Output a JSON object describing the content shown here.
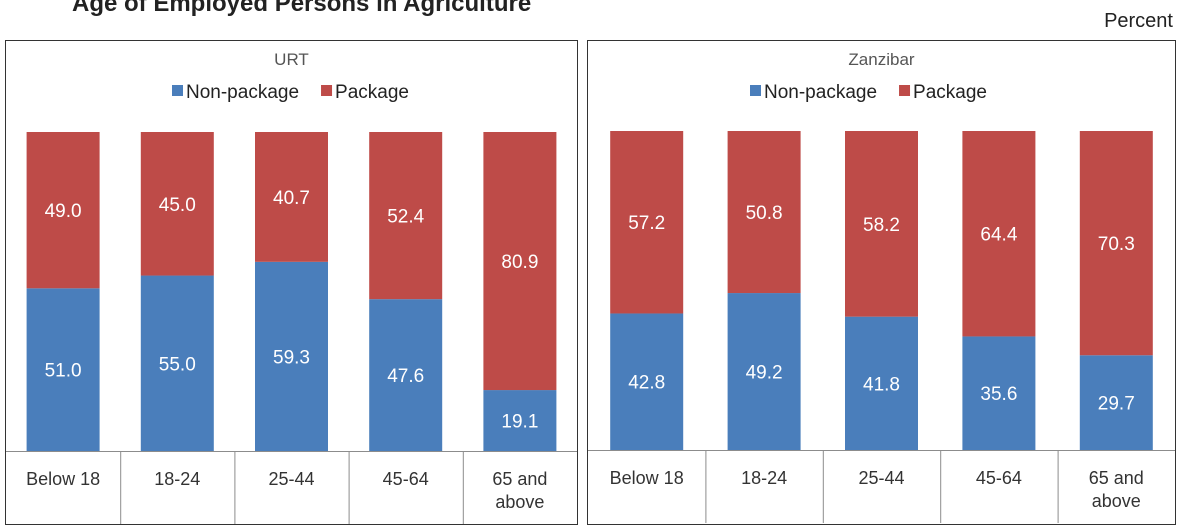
{
  "header": {
    "title": "Age of Employed Persons in Agriculture",
    "unit": "Percent"
  },
  "colors": {
    "non_package": "#4a7ebb",
    "package": "#be4b48"
  },
  "chart_data": [
    {
      "type": "bar",
      "stacked": true,
      "title": "URT",
      "legend_position": "top",
      "categories": [
        "Below 18",
        "18-24",
        "25-44",
        "45-64",
        "65 and above"
      ],
      "series": [
        {
          "name": "Non-package",
          "values": [
            51.0,
            55.0,
            59.3,
            47.6,
            19.1
          ]
        },
        {
          "name": "Package",
          "values": [
            49.0,
            45.0,
            40.7,
            52.4,
            80.9
          ]
        }
      ],
      "ylim": [
        0,
        100
      ],
      "grid": false
    },
    {
      "type": "bar",
      "stacked": true,
      "title": "Zanzibar",
      "legend_position": "top",
      "categories": [
        "Below 18",
        "18-24",
        "25-44",
        "45-64",
        "65 and above"
      ],
      "series": [
        {
          "name": "Non-package",
          "values": [
            42.8,
            49.2,
            41.8,
            35.6,
            29.7
          ]
        },
        {
          "name": "Package",
          "values": [
            57.2,
            50.8,
            58.2,
            64.4,
            70.3
          ]
        }
      ],
      "ylim": [
        0,
        100
      ],
      "grid": false
    }
  ]
}
